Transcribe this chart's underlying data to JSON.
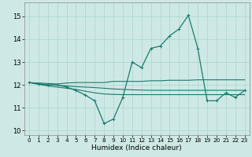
{
  "xlabel": "Humidex (Indice chaleur)",
  "xlim": [
    -0.5,
    23.5
  ],
  "ylim": [
    9.8,
    15.6
  ],
  "yticks": [
    10,
    11,
    12,
    13,
    14,
    15
  ],
  "xticks": [
    0,
    1,
    2,
    3,
    4,
    5,
    6,
    7,
    8,
    9,
    10,
    11,
    12,
    13,
    14,
    15,
    16,
    17,
    18,
    19,
    20,
    21,
    22,
    23
  ],
  "bg_color": "#cee9e5",
  "grid_color": "#aad4cf",
  "line_color": "#1a7a6e",
  "lines": [
    {
      "x": [
        0,
        1,
        2,
        3,
        4,
        5,
        6,
        7,
        8,
        9,
        10,
        11,
        12,
        13,
        14,
        15,
        16,
        17,
        18,
        19,
        20,
        21,
        22,
        23
      ],
      "y": [
        12.1,
        12.05,
        12.0,
        12.0,
        11.9,
        11.75,
        11.55,
        11.3,
        10.3,
        10.5,
        11.45,
        13.0,
        12.75,
        13.6,
        13.7,
        14.15,
        14.45,
        15.05,
        13.6,
        11.3,
        11.3,
        11.65,
        11.45,
        11.75
      ],
      "marker": true
    },
    {
      "x": [
        0,
        1,
        2,
        3,
        4,
        5,
        6,
        7,
        8,
        9,
        10,
        11,
        12,
        13,
        14,
        15,
        16,
        17,
        18,
        19,
        20,
        21,
        22,
        23
      ],
      "y": [
        12.1,
        12.08,
        12.06,
        12.04,
        12.08,
        12.1,
        12.1,
        12.1,
        12.1,
        12.15,
        12.15,
        12.15,
        12.15,
        12.18,
        12.18,
        12.2,
        12.2,
        12.2,
        12.22,
        12.22,
        12.22,
        12.22,
        12.22,
        12.22
      ],
      "marker": false
    },
    {
      "x": [
        0,
        1,
        2,
        3,
        4,
        5,
        6,
        7,
        8,
        9,
        10,
        11,
        12,
        13,
        14,
        15,
        16,
        17,
        18,
        19,
        20,
        21,
        22,
        23
      ],
      "y": [
        12.1,
        12.05,
        12.0,
        11.98,
        11.95,
        11.92,
        11.9,
        11.88,
        11.85,
        11.82,
        11.8,
        11.78,
        11.77,
        11.76,
        11.76,
        11.76,
        11.76,
        11.76,
        11.76,
        11.76,
        11.76,
        11.76,
        11.76,
        11.76
      ],
      "marker": false
    },
    {
      "x": [
        0,
        1,
        2,
        3,
        4,
        5,
        6,
        7,
        8,
        9,
        10,
        11,
        12,
        13,
        14,
        15,
        16,
        17,
        18,
        19,
        20,
        21,
        22,
        23
      ],
      "y": [
        12.1,
        12.02,
        11.95,
        11.9,
        11.85,
        11.8,
        11.72,
        11.65,
        11.6,
        11.58,
        11.57,
        11.57,
        11.57,
        11.57,
        11.57,
        11.57,
        11.57,
        11.57,
        11.57,
        11.57,
        11.57,
        11.57,
        11.57,
        11.57
      ],
      "marker": false
    }
  ]
}
